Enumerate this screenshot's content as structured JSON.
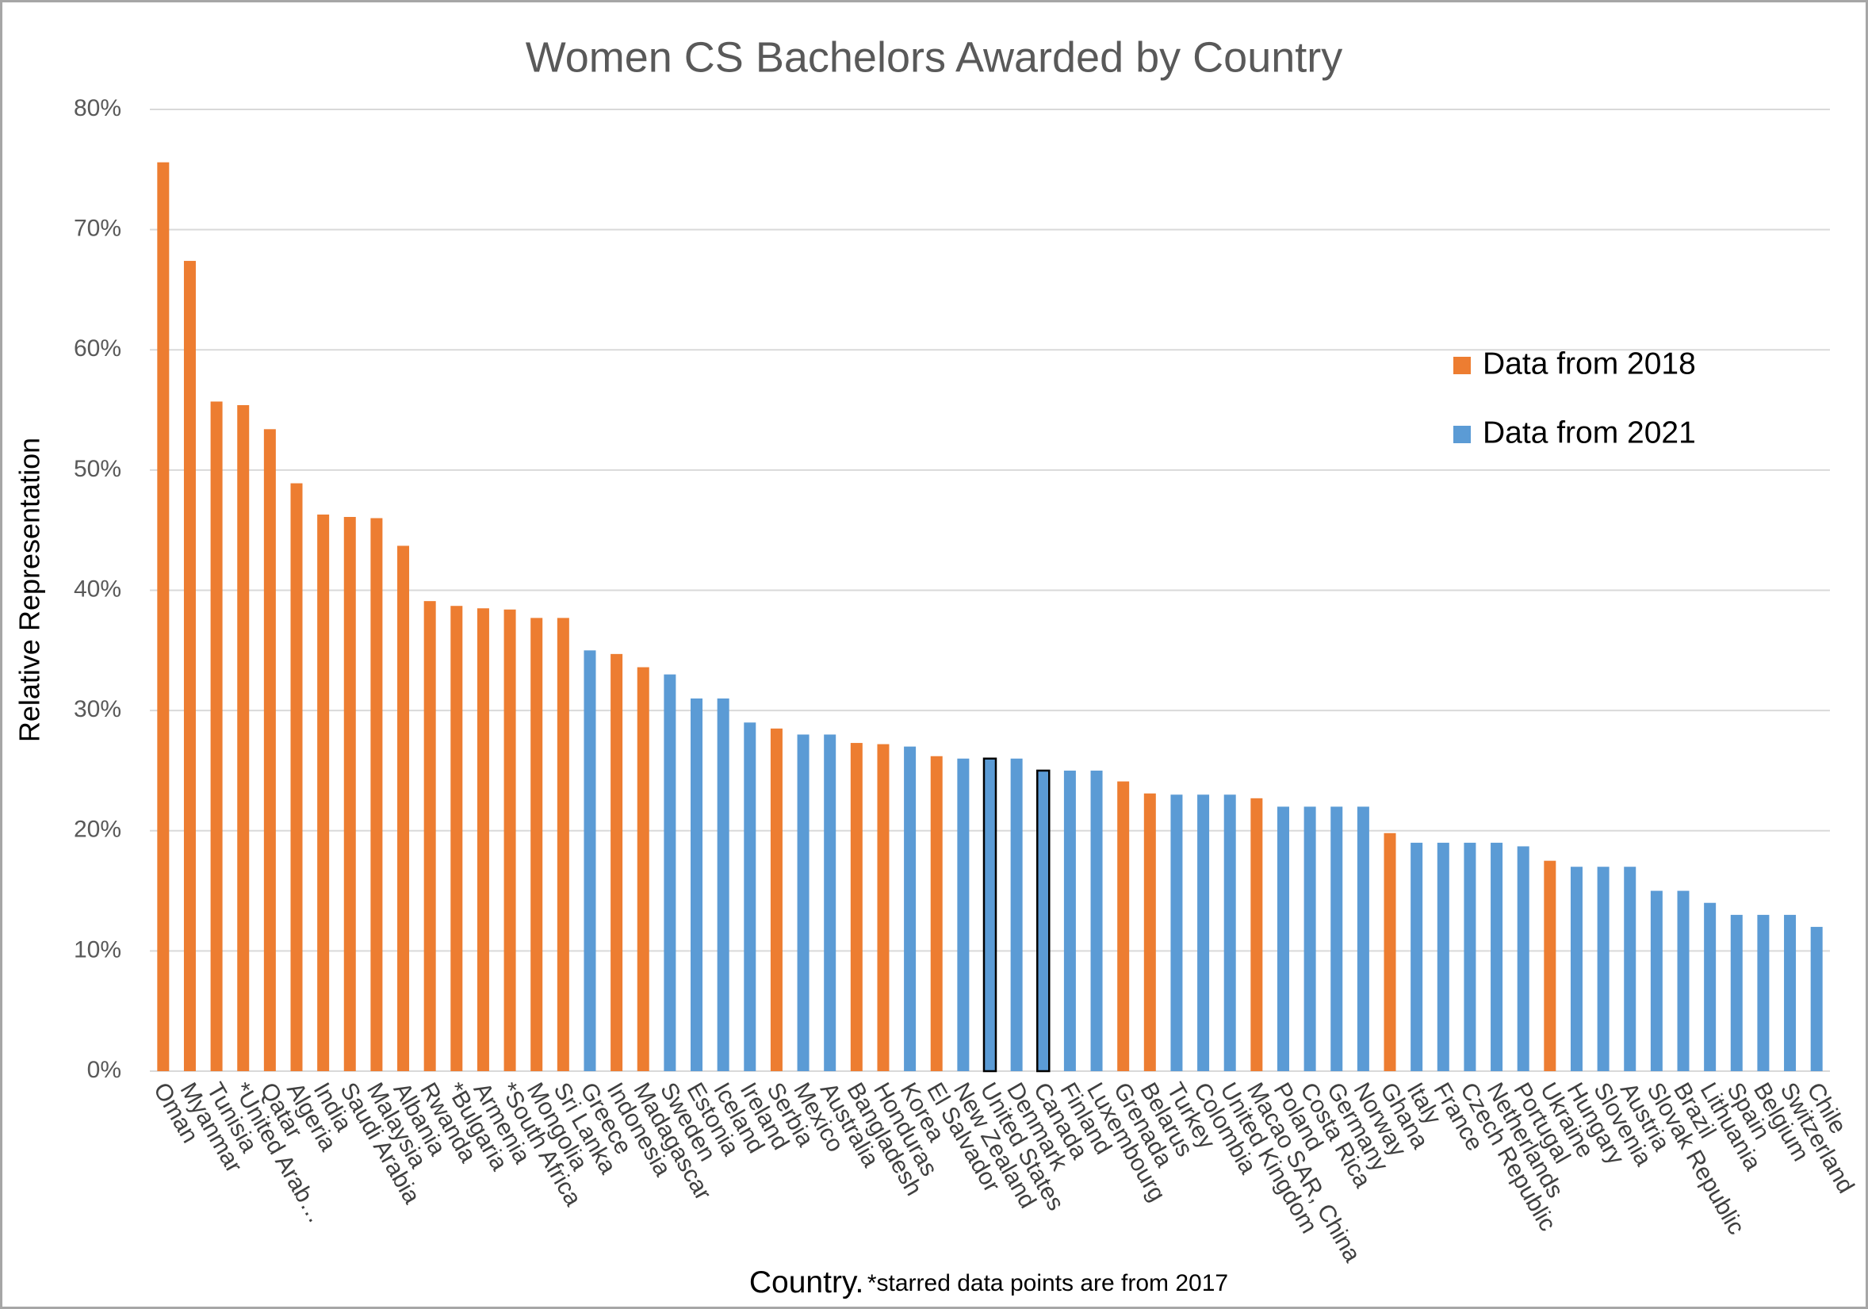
{
  "chart_data": {
    "type": "bar",
    "title": "Women CS Bachelors Awarded by Country",
    "y_label": "Relative Representation",
    "x_label": "Country.",
    "x_label_note": "*starred data points are from 2017",
    "categories": [
      "Oman",
      "Myanmar",
      "Tunisia",
      "*United Arab…",
      "Qatar",
      "Algeria",
      "India",
      "Saudi Arabia",
      "Malaysia",
      "Albania",
      "Rwanda",
      "*Bulgaria",
      "Armenia",
      "*South Africa",
      "Mongolia",
      "Sri Lanka",
      "Greece",
      "Indonesia",
      "Madagascar",
      "Sweden",
      "Estonia",
      "Iceland",
      "Ireland",
      "Serbia",
      "Mexico",
      "Australia",
      "Bangladesh",
      "Honduras",
      "Korea",
      "El Salvador",
      "New Zealand",
      "United States",
      "Denmark",
      "Canada",
      "Finland",
      "Luxembourg",
      "Grenada",
      "Belarus",
      "Turkey",
      "Colombia",
      "United Kingdom",
      "Macao SAR, China",
      "Poland",
      "Costa Rica",
      "Germany",
      "Norway",
      "Ghana",
      "Italy",
      "France",
      "Czech Republic",
      "Netherlands",
      "Portugal",
      "Ukraine",
      "Hungary",
      "Slovenia",
      "Austria",
      "Slovak Republic",
      "Brazil",
      "Lithuania",
      "Spain",
      "Belgium",
      "Switzerland",
      "Chile"
    ],
    "series": [
      {
        "name": "Data from 2018",
        "color": "#ed7d31",
        "values": [
          75.6,
          67.4,
          55.7,
          55.4,
          53.4,
          48.9,
          46.3,
          46.1,
          46.0,
          43.7,
          39.1,
          38.7,
          38.5,
          38.4,
          37.7,
          37.7,
          null,
          34.7,
          33.6,
          null,
          null,
          null,
          null,
          28.5,
          null,
          null,
          27.3,
          27.2,
          null,
          26.2,
          null,
          null,
          null,
          null,
          null,
          null,
          24.1,
          23.1,
          null,
          null,
          null,
          22.7,
          null,
          null,
          null,
          null,
          19.8,
          null,
          null,
          null,
          null,
          null,
          17.5,
          null,
          null,
          null,
          null,
          null,
          null,
          null,
          null,
          null,
          null
        ]
      },
      {
        "name": "Data from 2021",
        "color": "#5b9bd5",
        "values": [
          null,
          null,
          null,
          null,
          null,
          null,
          null,
          null,
          null,
          null,
          null,
          null,
          null,
          null,
          null,
          null,
          35,
          null,
          null,
          33,
          31,
          31,
          29,
          null,
          28,
          28,
          null,
          null,
          27,
          null,
          26,
          26,
          26,
          25,
          25,
          25,
          null,
          null,
          23,
          23,
          23,
          null,
          22,
          22,
          22,
          22,
          null,
          19,
          19,
          19,
          19,
          18.7,
          null,
          17,
          17,
          17,
          15,
          15,
          14,
          13,
          13,
          13,
          12
        ]
      }
    ],
    "outlined": [
      31,
      33
    ],
    "ylim": [
      0,
      80
    ],
    "yticks": [
      {
        "value": 0,
        "label": "0%"
      },
      {
        "value": 10,
        "label": "10%"
      },
      {
        "value": 20,
        "label": "20%"
      },
      {
        "value": 30,
        "label": "30%"
      },
      {
        "value": 40,
        "label": "40%"
      },
      {
        "value": 50,
        "label": "50%"
      },
      {
        "value": 60,
        "label": "60%"
      },
      {
        "value": 70,
        "label": "70%"
      },
      {
        "value": 80,
        "label": "80%"
      }
    ],
    "grid": true
  }
}
